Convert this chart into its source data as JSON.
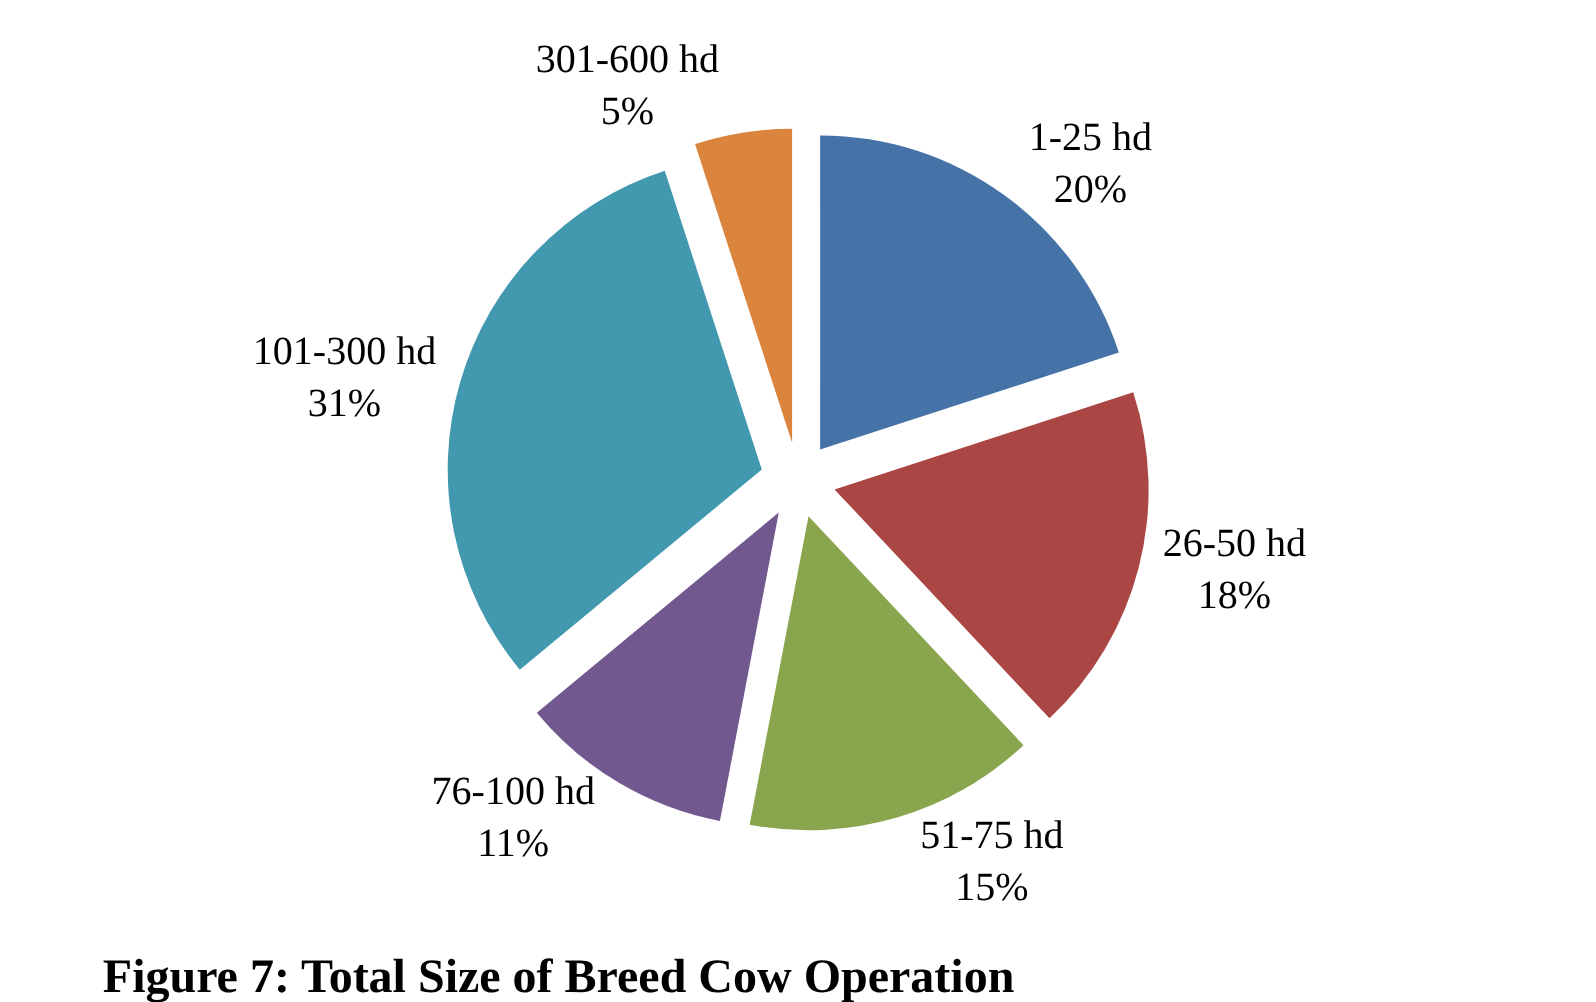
{
  "chart_data": {
    "type": "pie",
    "title": "Figure 7: Total Size of Breed Cow Operation",
    "categories": [
      "1-25 hd",
      "26-50 hd",
      "51-75 hd",
      "76-100 hd",
      "101-300 hd",
      "301-600 hd"
    ],
    "values": [
      20,
      18,
      15,
      11,
      31,
      5
    ],
    "value_labels": [
      "20%",
      "18%",
      "15%",
      "11%",
      "31%",
      "5%"
    ],
    "colors": [
      "#4572a7",
      "#aa4643",
      "#89a54e",
      "#71588f",
      "#4198af",
      "#db843d"
    ],
    "legend": false
  }
}
